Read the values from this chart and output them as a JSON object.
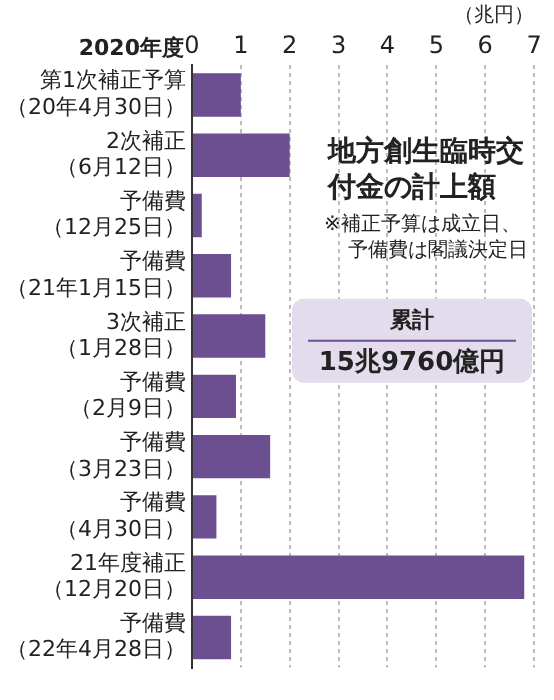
{
  "chart_data": {
    "type": "bar",
    "orientation": "horizontal",
    "title": "地方創生臨時交付金の計上額",
    "xlabel": "（兆円）",
    "ylabel": "2020年度",
    "categories": [
      "第1次補正予算（20年4月30日）",
      "2次補正（6月12日）",
      "予備費（12月25日）",
      "予備費（21年1月15日）",
      "3次補正（1月28日）",
      "予備費（2月9日）",
      "予備費（3月23日）",
      "予備費（4月30日）",
      "21年度補正（12月20日）",
      "予備費（22年4月28日）"
    ],
    "values": [
      1.0,
      2.0,
      0.2,
      0.8,
      1.5,
      0.9,
      1.6,
      0.5,
      6.8,
      0.8
    ],
    "color": "#6b4f91",
    "xlim": [
      0,
      7
    ],
    "xticks": [
      0,
      1,
      2,
      3,
      4,
      5,
      6,
      7
    ],
    "grid": "x",
    "legend": false,
    "annotations": [
      "※補正予算は成立日、予備費は閣議決定日",
      "累計",
      "15兆9760億円"
    ]
  }
}
